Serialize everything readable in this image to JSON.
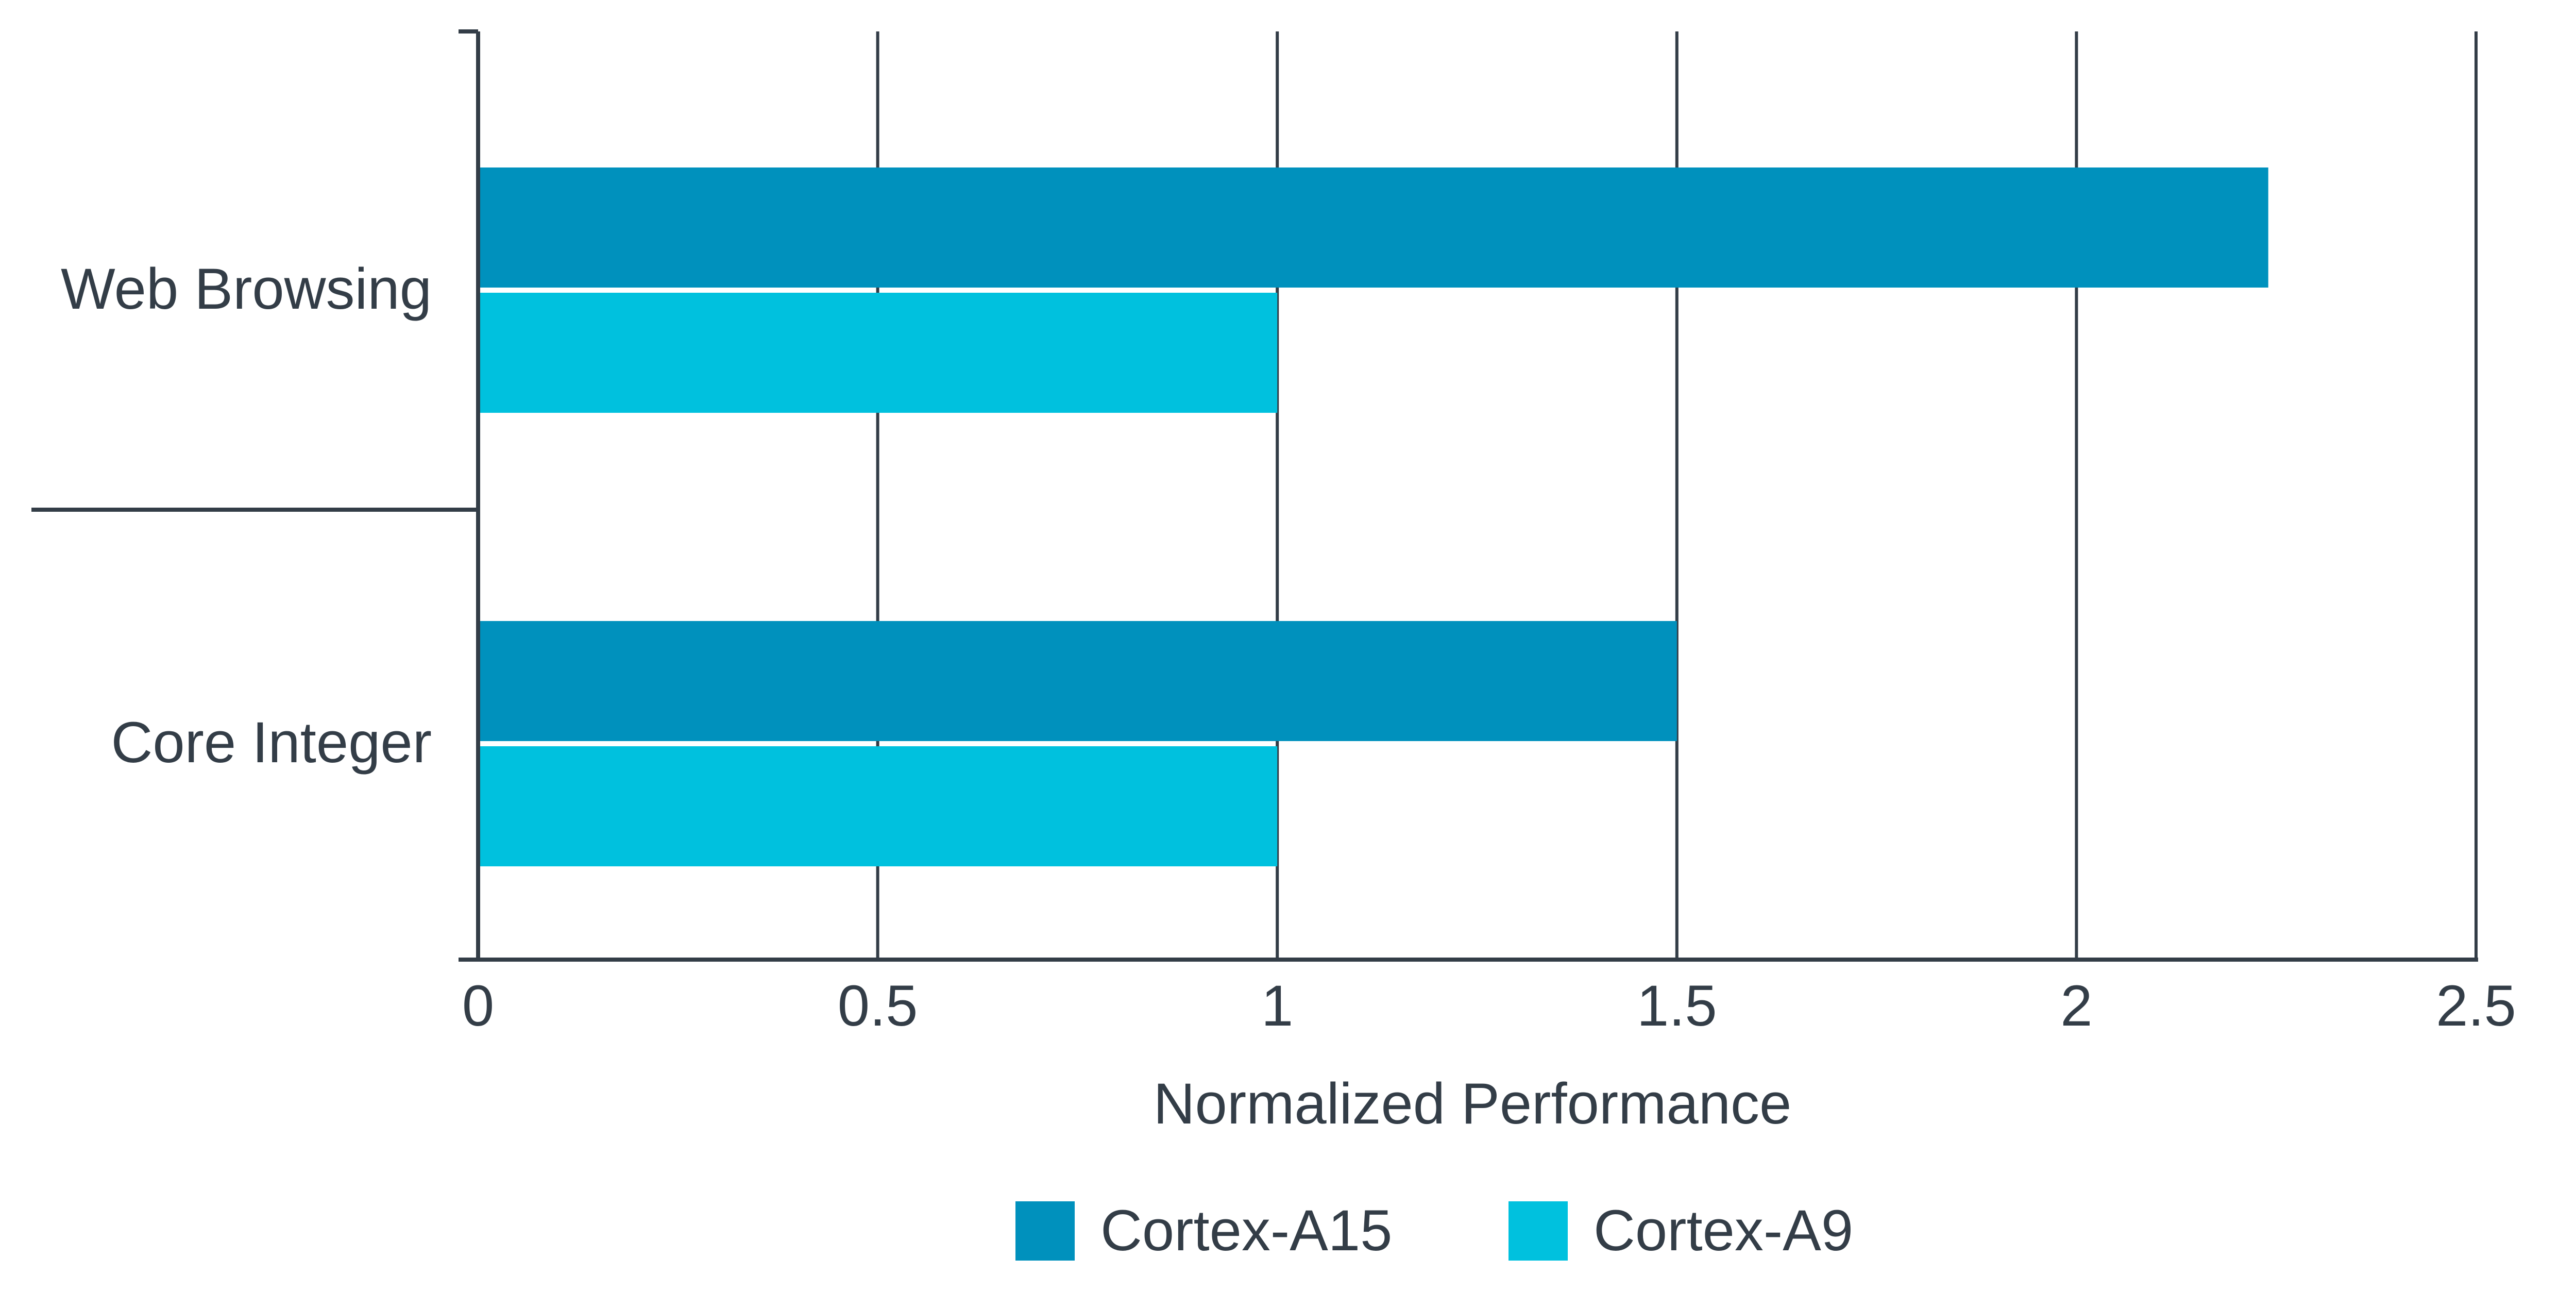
{
  "chart_data": {
    "type": "bar",
    "orientation": "horizontal",
    "title": "",
    "xlabel": "Normalized Performance",
    "ylabel": "",
    "xlim": [
      0,
      2.5
    ],
    "xticks": [
      "0",
      "0.5",
      "1",
      "1.5",
      "2",
      "2.5"
    ],
    "xtick_values": [
      0,
      0.5,
      1,
      1.5,
      2,
      2.5
    ],
    "grid": "vertical",
    "categories": [
      "Web Browsing",
      "Core Integer"
    ],
    "series": [
      {
        "name": "Cortex-A15",
        "color": "#0091bd",
        "values": [
          2.24,
          1.5
        ]
      },
      {
        "name": "Cortex-A9",
        "color": "#00c1de",
        "values": [
          1.0,
          1.0
        ]
      }
    ],
    "legend": {
      "placement": "bottom",
      "entries": [
        "Cortex-A15",
        "Cortex-A9"
      ]
    }
  }
}
